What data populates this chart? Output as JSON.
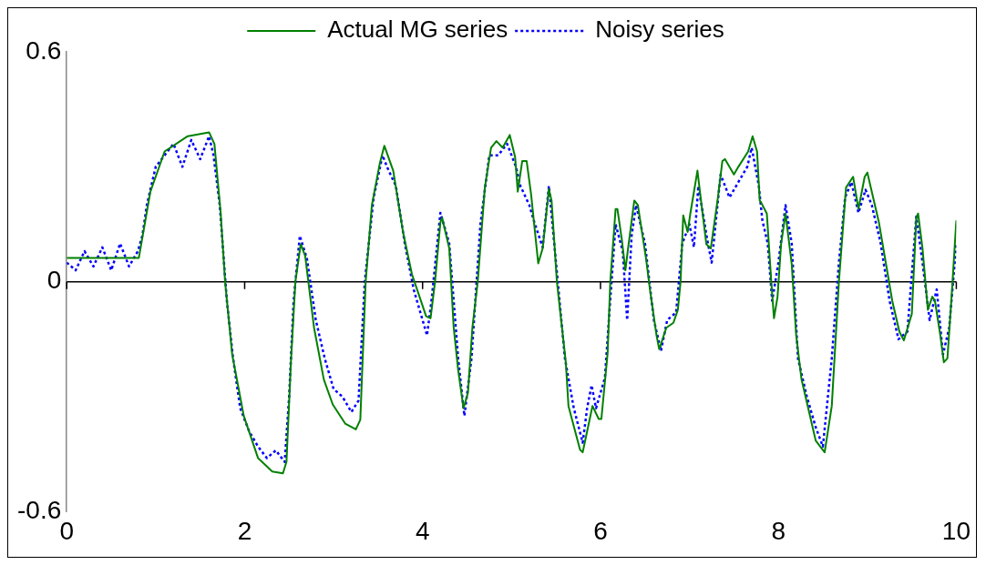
{
  "chart_data": {
    "type": "line",
    "xlim": [
      0,
      10
    ],
    "xticks": [
      0,
      2,
      4,
      6,
      8,
      10
    ],
    "ylim": [
      -0.6,
      0.6
    ],
    "yticks": [
      -0.6,
      0,
      0.6
    ],
    "grid": false,
    "legend": "top",
    "marker": "none",
    "ref_lines": [
      {
        "axis": "y",
        "value": 0,
        "color": "#000000"
      }
    ],
    "series": [
      {
        "name": "Actual MG series",
        "color": "#008000",
        "line_style": "solid",
        "x": [
          0,
          0.81,
          0.94,
          1.1,
          1.36,
          1.6,
          1.66,
          1.73,
          1.78,
          1.86,
          1.99,
          2.15,
          2.31,
          2.43,
          2.47,
          2.52,
          2.57,
          2.63,
          2.68,
          2.78,
          2.89,
          2.99,
          3.13,
          3.25,
          3.3,
          3.36,
          3.43,
          3.52,
          3.57,
          3.67,
          3.78,
          3.88,
          4.04,
          4.09,
          4.14,
          4.2,
          4.22,
          4.3,
          4.35,
          4.4,
          4.46,
          4.51,
          4.56,
          4.62,
          4.7,
          4.77,
          4.83,
          4.9,
          4.98,
          5.04,
          5.07,
          5.12,
          5.17,
          5.22,
          5.3,
          5.35,
          5.42,
          5.45,
          5.51,
          5.61,
          5.64,
          5.77,
          5.8,
          5.85,
          5.91,
          5.98,
          6.01,
          6.08,
          6.11,
          6.17,
          6.19,
          6.24,
          6.28,
          6.31,
          6.38,
          6.42,
          6.51,
          6.56,
          6.63,
          6.66,
          6.74,
          6.82,
          6.87,
          6.9,
          6.93,
          6.98,
          7.01,
          7.09,
          7.13,
          7.19,
          7.24,
          7.32,
          7.37,
          7.4,
          7.5,
          7.55,
          7.66,
          7.71,
          7.76,
          7.79,
          7.81,
          7.87,
          7.92,
          7.95,
          7.99,
          8.03,
          8.08,
          8.15,
          8.2,
          8.26,
          8.34,
          8.42,
          8.52,
          8.6,
          8.68,
          8.76,
          8.84,
          8.9,
          8.97,
          9,
          9.13,
          9.21,
          9.28,
          9.36,
          9.41,
          9.5,
          9.55,
          9.57,
          9.62,
          9.68,
          9.73,
          9.76,
          9.82,
          9.86,
          9.9,
          9.95,
          10
        ],
        "values": [
          0.062,
          0.062,
          0.235,
          0.34,
          0.38,
          0.39,
          0.36,
          0.18,
          0,
          -0.19,
          -0.35,
          -0.46,
          -0.495,
          -0.5,
          -0.47,
          -0.21,
          0,
          0.098,
          0.068,
          -0.12,
          -0.255,
          -0.32,
          -0.37,
          -0.385,
          -0.36,
          0,
          0.2,
          0.31,
          0.355,
          0.29,
          0.13,
          0.02,
          -0.09,
          -0.095,
          0,
          0.155,
          0.167,
          0.087,
          -0.12,
          -0.23,
          -0.33,
          -0.29,
          -0.12,
          0,
          0.246,
          0.35,
          0.367,
          0.35,
          0.383,
          0.326,
          0.235,
          0.315,
          0.315,
          0.228,
          0.048,
          0.087,
          0.242,
          0.212,
          0,
          -0.21,
          -0.324,
          -0.438,
          -0.445,
          -0.39,
          -0.324,
          -0.358,
          -0.358,
          -0.187,
          0,
          0.19,
          0.19,
          0.11,
          0.03,
          0.087,
          0.212,
          0.2,
          0.064,
          -0.027,
          -0.14,
          -0.176,
          -0.12,
          -0.107,
          -0.073,
          0,
          0.173,
          0.13,
          0.178,
          0.29,
          0.212,
          0.098,
          0.087,
          0.22,
          0.315,
          0.32,
          0.28,
          0.3,
          0.34,
          0.38,
          0.34,
          0.212,
          0.205,
          0.178,
          0,
          -0.095,
          -0.04,
          0.098,
          0.178,
          0.046,
          -0.14,
          -0.255,
          -0.335,
          -0.415,
          -0.445,
          -0.324,
          0,
          0.246,
          0.274,
          0.19,
          0.274,
          0.285,
          0.155,
          0.046,
          -0.05,
          -0.13,
          -0.153,
          -0.084,
          0.167,
          0.178,
          0.087,
          -0.073,
          -0.039,
          -0.05,
          -0.14,
          -0.21,
          -0.2,
          -0.027,
          0.16
        ]
      },
      {
        "name": "Noisy series",
        "color": "#0000ff",
        "line_style": "dotted",
        "x": [
          0,
          0.1,
          0.2,
          0.3,
          0.4,
          0.5,
          0.6,
          0.7,
          0.8,
          0.85,
          0.9,
          1,
          1.1,
          1.2,
          1.3,
          1.4,
          1.5,
          1.6,
          1.65,
          1.72,
          1.8,
          1.87,
          1.95,
          2.05,
          2.15,
          2.25,
          2.35,
          2.45,
          2.5,
          2.55,
          2.62,
          2.7,
          2.8,
          2.9,
          3,
          3.1,
          3.2,
          3.28,
          3.35,
          3.45,
          3.55,
          3.6,
          3.7,
          3.8,
          3.9,
          4,
          4.05,
          4.1,
          4.2,
          4.3,
          4.4,
          4.47,
          4.55,
          4.65,
          4.75,
          4.85,
          4.95,
          5.05,
          5.1,
          5.2,
          5.25,
          5.35,
          5.42,
          5.5,
          5.6,
          5.7,
          5.8,
          5.85,
          5.9,
          5.95,
          6.05,
          6.1,
          6.17,
          6.25,
          6.3,
          6.35,
          6.4,
          6.5,
          6.6,
          6.68,
          6.75,
          6.85,
          6.92,
          7,
          7.05,
          7.1,
          7.2,
          7.25,
          7.35,
          7.45,
          7.55,
          7.65,
          7.7,
          7.78,
          7.82,
          7.88,
          7.93,
          8,
          8.08,
          8.15,
          8.22,
          8.32,
          8.42,
          8.5,
          8.6,
          8.68,
          8.75,
          8.82,
          8.9,
          8.98,
          9.05,
          9.15,
          9.25,
          9.35,
          9.45,
          9.55,
          9.62,
          9.7,
          9.78,
          9.85,
          9.92,
          10
        ],
        "values": [
          0.05,
          0.03,
          0.08,
          0.04,
          0.09,
          0.03,
          0.1,
          0.04,
          0.08,
          0.12,
          0.2,
          0.3,
          0.33,
          0.36,
          0.3,
          0.37,
          0.32,
          0.38,
          0.33,
          0.2,
          -0.05,
          -0.2,
          -0.33,
          -0.39,
          -0.43,
          -0.46,
          -0.44,
          -0.47,
          -0.3,
          -0.05,
          0.12,
          0.06,
          -0.1,
          -0.2,
          -0.28,
          -0.3,
          -0.34,
          -0.31,
          0,
          0.22,
          0.33,
          0.3,
          0.25,
          0.1,
          -0.02,
          -0.1,
          -0.14,
          -0.05,
          0.18,
          0.1,
          -0.2,
          -0.35,
          -0.2,
          0.15,
          0.33,
          0.33,
          0.36,
          0.3,
          0.25,
          0.2,
          0.16,
          0.09,
          0.25,
          0.05,
          -0.2,
          -0.33,
          -0.42,
          -0.33,
          -0.27,
          -0.33,
          -0.25,
          -0.08,
          0.15,
          0.08,
          -0.1,
          0.12,
          0.2,
          0.1,
          -0.1,
          -0.18,
          -0.1,
          -0.08,
          0.1,
          0.15,
          0.09,
          0.25,
          0.11,
          0.05,
          0.28,
          0.22,
          0.26,
          0.3,
          0.35,
          0.25,
          0.16,
          0.1,
          -0.05,
          0.05,
          0.2,
          0.1,
          -0.2,
          -0.3,
          -0.38,
          -0.43,
          -0.2,
          0.05,
          0.22,
          0.26,
          0.18,
          0.24,
          0.2,
          0.1,
          -0.05,
          -0.15,
          -0.13,
          0.17,
          0.05,
          -0.1,
          -0.02,
          -0.19,
          -0.12,
          0.1
        ]
      }
    ]
  }
}
